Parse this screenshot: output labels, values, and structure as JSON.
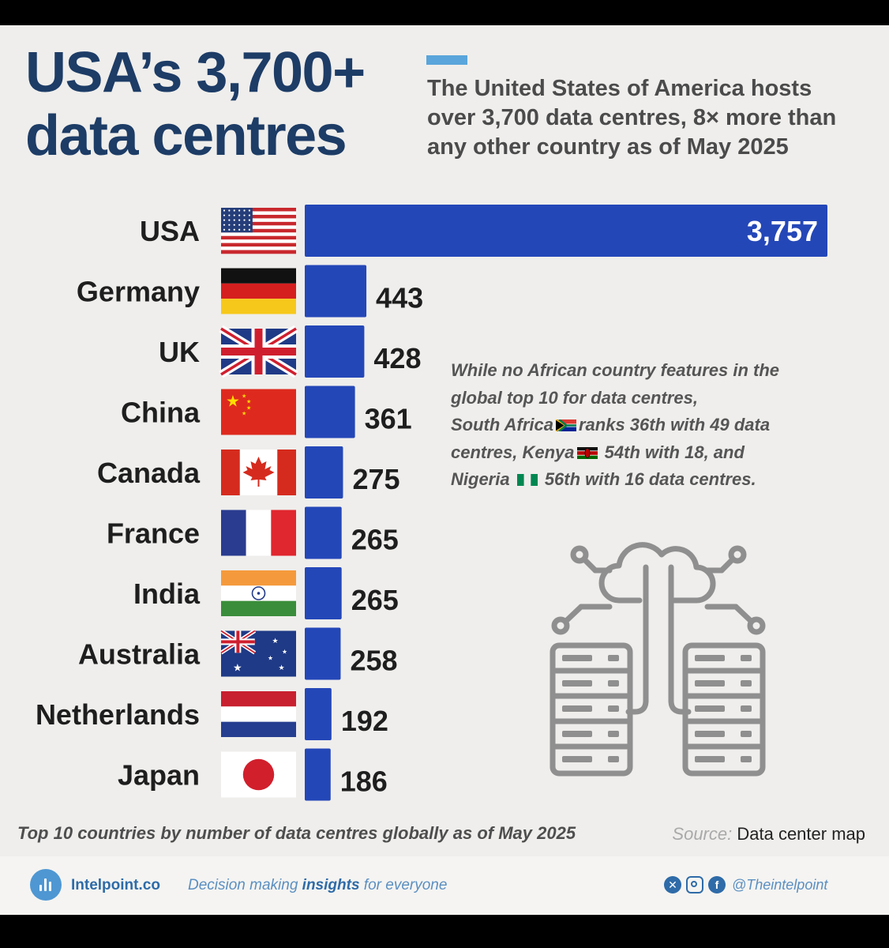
{
  "header": {
    "title_lines": [
      "USA’s 3,700+",
      "data centres"
    ],
    "subtitle_lines": [
      "The United States of America hosts",
      "over 3,700 data centres, 8× more than",
      "any other country as of May 2025"
    ]
  },
  "chart_data": {
    "type": "bar",
    "orientation": "horizontal",
    "categories": [
      "USA",
      "Germany",
      "UK",
      "China",
      "Canada",
      "France",
      "India",
      "Australia",
      "Netherlands",
      "Japan"
    ],
    "values": [
      3757,
      443,
      428,
      361,
      275,
      265,
      265,
      258,
      192,
      186
    ],
    "value_labels": [
      "3,757",
      "443",
      "428",
      "361",
      "275",
      "265",
      "265",
      "258",
      "192",
      "186"
    ],
    "flags": [
      "usa",
      "germany",
      "uk",
      "china",
      "canada",
      "france",
      "india",
      "australia",
      "netherlands",
      "japan"
    ],
    "bar_color": "#2447b8",
    "xlim": [
      0,
      3757
    ],
    "grid": false,
    "legend": "none"
  },
  "note": {
    "lines": [
      [
        {
          "t": "While no African country features in the"
        }
      ],
      [
        {
          "t": "global top 10 for data centres,"
        }
      ],
      [
        {
          "t": "South Africa"
        },
        {
          "flag": "south-africa"
        },
        {
          "t": "ranks 36th with 49 data"
        }
      ],
      [
        {
          "t": "centres, Kenya"
        },
        {
          "flag": "kenya"
        },
        {
          "t": " 54th with 18, and"
        }
      ],
      [
        {
          "t": "Nigeria "
        },
        {
          "flag": "nigeria"
        },
        {
          "t": " 56th with 16 data centres."
        }
      ]
    ]
  },
  "footnote": "Top 10 countries by number of data centres globally as of May 2025",
  "source": {
    "key": "Source:",
    "value": "Data center map"
  },
  "footer": {
    "brand": "Intelpoint.co",
    "tagline_pre": "Decision making ",
    "tagline_bold": "insights",
    "tagline_post": " for everyone",
    "handle": "@Theintelpoint",
    "social_icons": [
      "x-icon",
      "instagram-icon",
      "facebook-icon"
    ]
  },
  "colors": {
    "title": "#1d3c66",
    "accent": "#5aa5db",
    "bar": "#2447b8",
    "background": "#efeeec",
    "brand": "#2e6ba8"
  }
}
